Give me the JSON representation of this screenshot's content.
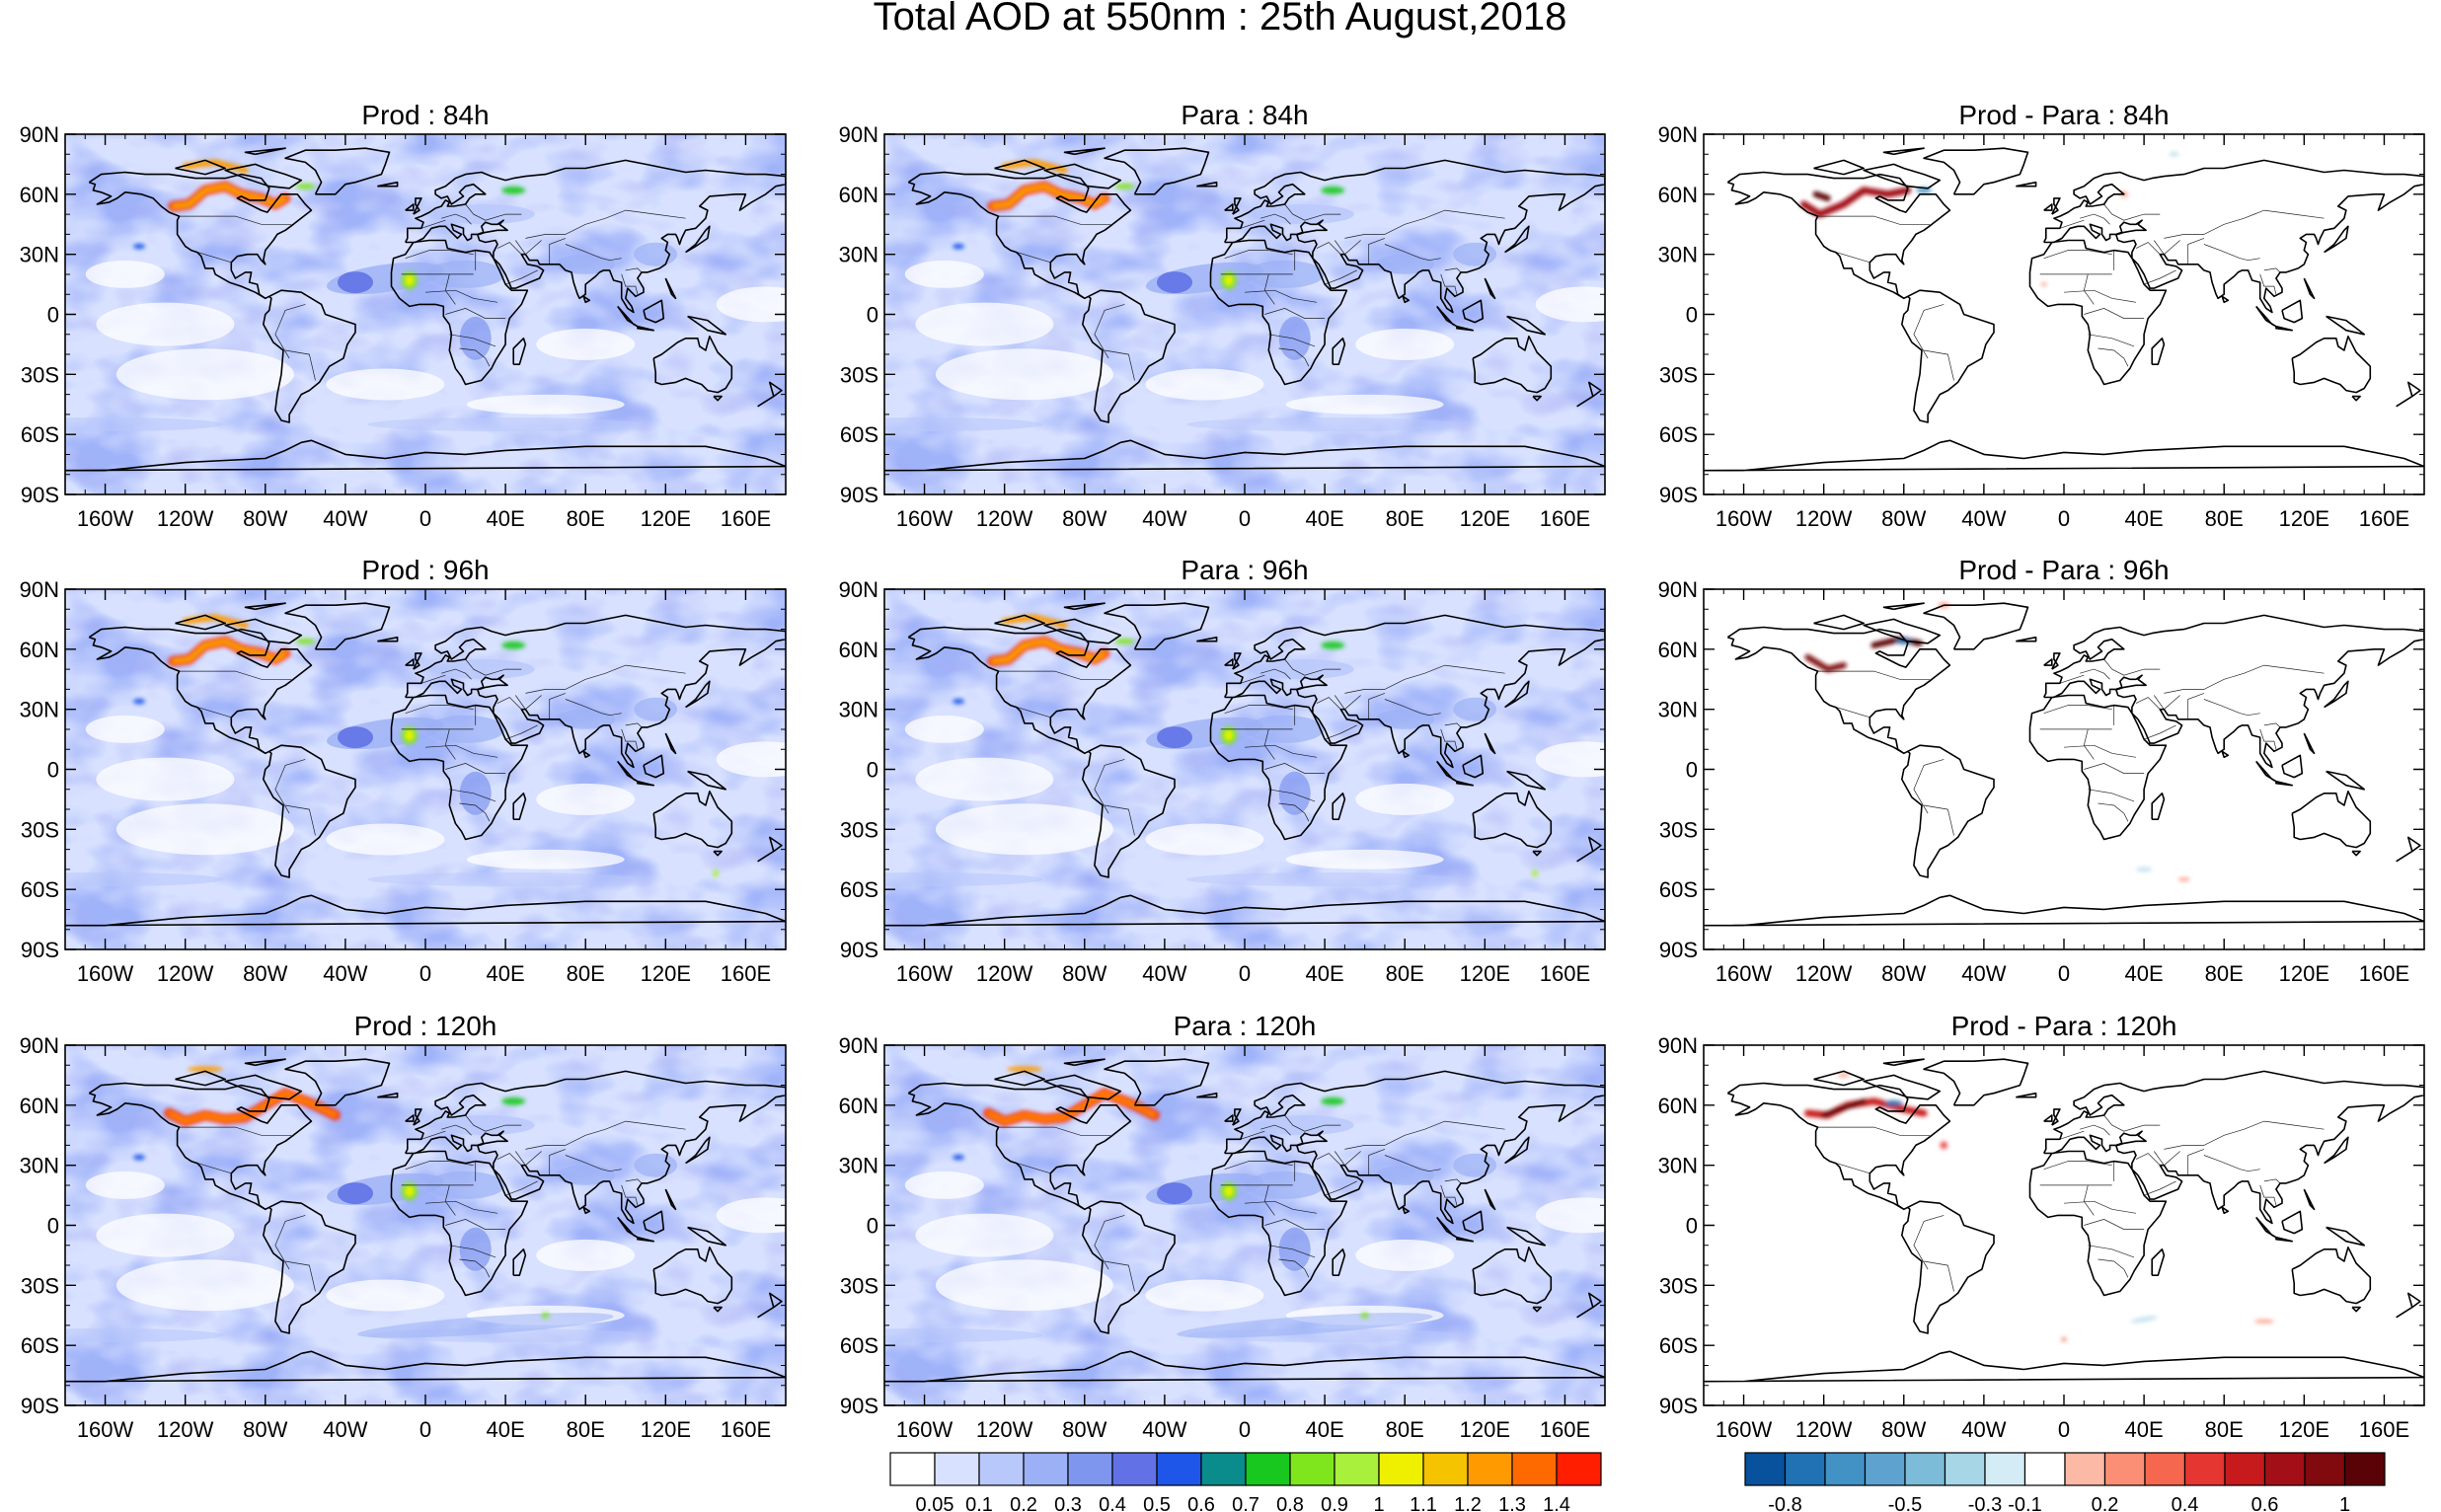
{
  "title": "Total AOD at 550nm : 25th August,2018",
  "panels": [
    {
      "title": "Prod : 84h",
      "kind": "aod",
      "variant": 0
    },
    {
      "title": "Para : 84h",
      "kind": "aod",
      "variant": 1
    },
    {
      "title": "Prod - Para : 84h",
      "kind": "diff",
      "variant": 0
    },
    {
      "title": "Prod : 96h",
      "kind": "aod",
      "variant": 2
    },
    {
      "title": "Para : 96h",
      "kind": "aod",
      "variant": 3
    },
    {
      "title": "Prod - Para : 96h",
      "kind": "diff",
      "variant": 1
    },
    {
      "title": "Prod : 120h",
      "kind": "aod",
      "variant": 4
    },
    {
      "title": "Para : 120h",
      "kind": "aod",
      "variant": 5
    },
    {
      "title": "Prod - Para : 120h",
      "kind": "diff",
      "variant": 2
    }
  ],
  "lat_ticks": [
    "90N",
    "60N",
    "30N",
    "0",
    "30S",
    "60S",
    "90S"
  ],
  "lon_ticks": [
    "160W",
    "120W",
    "80W",
    "40W",
    "0",
    "40E",
    "80E",
    "120E",
    "160E"
  ],
  "aod_colorbar": {
    "colors": [
      "#ffffff",
      "#d8e1ff",
      "#b9c8fb",
      "#9bb0f5",
      "#7f96ef",
      "#6272e6",
      "#1f56ea",
      "#0a8c8c",
      "#19c81e",
      "#7fe61e",
      "#a8f03c",
      "#eef000",
      "#f5c300",
      "#ff9b00",
      "#ff6a00",
      "#ff1e00"
    ],
    "labels": [
      "0.05",
      "0.1",
      "0.2",
      "0.3",
      "0.4",
      "0.5",
      "0.6",
      "0.7",
      "0.8",
      "0.9",
      "1",
      "1.1",
      "1.2",
      "1.3",
      "1.4"
    ]
  },
  "diff_colorbar": {
    "colors": [
      "#08519c",
      "#2171b5",
      "#4292c6",
      "#5ea3cf",
      "#7dbcd8",
      "#a7d6e6",
      "#d4ecf6",
      "#ffffff",
      "#fcb9a6",
      "#fb8f76",
      "#f6674f",
      "#e53632",
      "#c61a1d",
      "#a30f16",
      "#800a0d",
      "#5a0306"
    ],
    "labels": [
      "-0.8",
      "-0.5",
      "-0.3",
      "-0.1",
      "0.2",
      "0.4",
      "0.6",
      "1"
    ],
    "label_after_boxes": [
      1,
      4,
      6,
      7,
      9,
      11,
      13,
      15
    ]
  }
}
